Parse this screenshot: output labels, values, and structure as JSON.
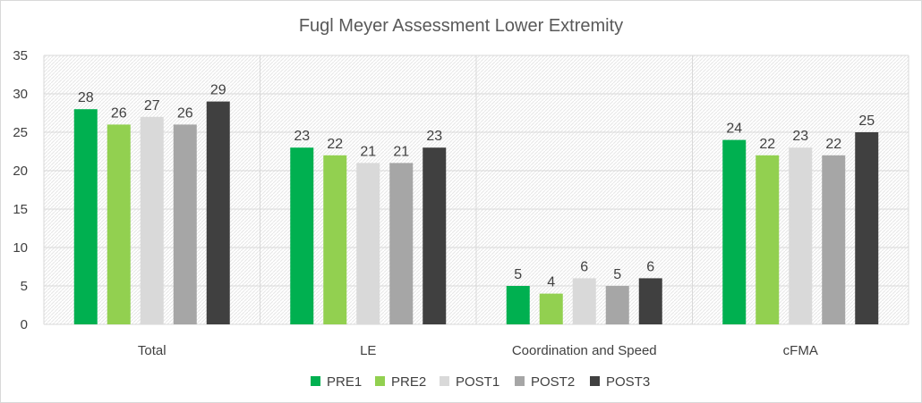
{
  "chart_data": {
    "type": "bar",
    "title": "Fugl Meyer Assessment Lower Extremity",
    "xlabel": "",
    "ylabel": "",
    "ylim": [
      0,
      35
    ],
    "yticks": [
      0,
      5,
      10,
      15,
      20,
      25,
      30,
      35
    ],
    "grid": true,
    "legend_position": "bottom",
    "categories": [
      "Total",
      "LE",
      "Coordination and Speed",
      "cFMA"
    ],
    "series": [
      {
        "name": "PRE1",
        "color": "#00b050",
        "values": [
          28,
          23,
          5,
          24
        ]
      },
      {
        "name": "PRE2",
        "color": "#92d050",
        "values": [
          26,
          22,
          4,
          22
        ]
      },
      {
        "name": "POST1",
        "color": "#d9d9d9",
        "values": [
          27,
          21,
          6,
          23
        ]
      },
      {
        "name": "POST2",
        "color": "#a6a6a6",
        "values": [
          26,
          21,
          5,
          22
        ]
      },
      {
        "name": "POST3",
        "color": "#404040",
        "values": [
          29,
          23,
          6,
          25
        ]
      }
    ]
  }
}
